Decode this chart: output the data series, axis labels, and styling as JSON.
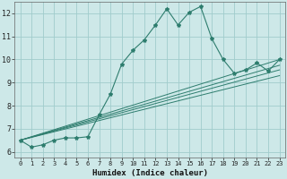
{
  "xlabel": "Humidex (Indice chaleur)",
  "xlim": [
    -0.5,
    23.5
  ],
  "ylim": [
    5.75,
    12.5
  ],
  "xticks": [
    0,
    1,
    2,
    3,
    4,
    5,
    6,
    7,
    8,
    9,
    10,
    11,
    12,
    13,
    14,
    15,
    16,
    17,
    18,
    19,
    20,
    21,
    22,
    23
  ],
  "yticks": [
    6,
    7,
    8,
    9,
    10,
    11,
    12
  ],
  "bg_color": "#cde8e8",
  "line_color": "#2e7d6e",
  "grid_color": "#a0cccc",
  "main_x": [
    0,
    1,
    2,
    3,
    4,
    5,
    6,
    7,
    8,
    9,
    10,
    11,
    12,
    13,
    14,
    15,
    16,
    17,
    18,
    19,
    20,
    21,
    22,
    23
  ],
  "main_y": [
    6.5,
    6.2,
    6.3,
    6.5,
    6.6,
    6.6,
    6.65,
    7.6,
    8.5,
    9.8,
    10.4,
    10.85,
    11.5,
    12.2,
    11.5,
    12.05,
    12.3,
    10.9,
    10.0,
    9.4,
    9.55,
    9.85,
    9.5,
    10.0
  ],
  "fan_lines": [
    {
      "x": [
        0,
        23
      ],
      "y": [
        6.5,
        9.3
      ]
    },
    {
      "x": [
        0,
        23
      ],
      "y": [
        6.5,
        9.55
      ]
    },
    {
      "x": [
        0,
        23
      ],
      "y": [
        6.5,
        9.75
      ]
    },
    {
      "x": [
        0,
        23
      ],
      "y": [
        6.5,
        10.0
      ]
    }
  ]
}
